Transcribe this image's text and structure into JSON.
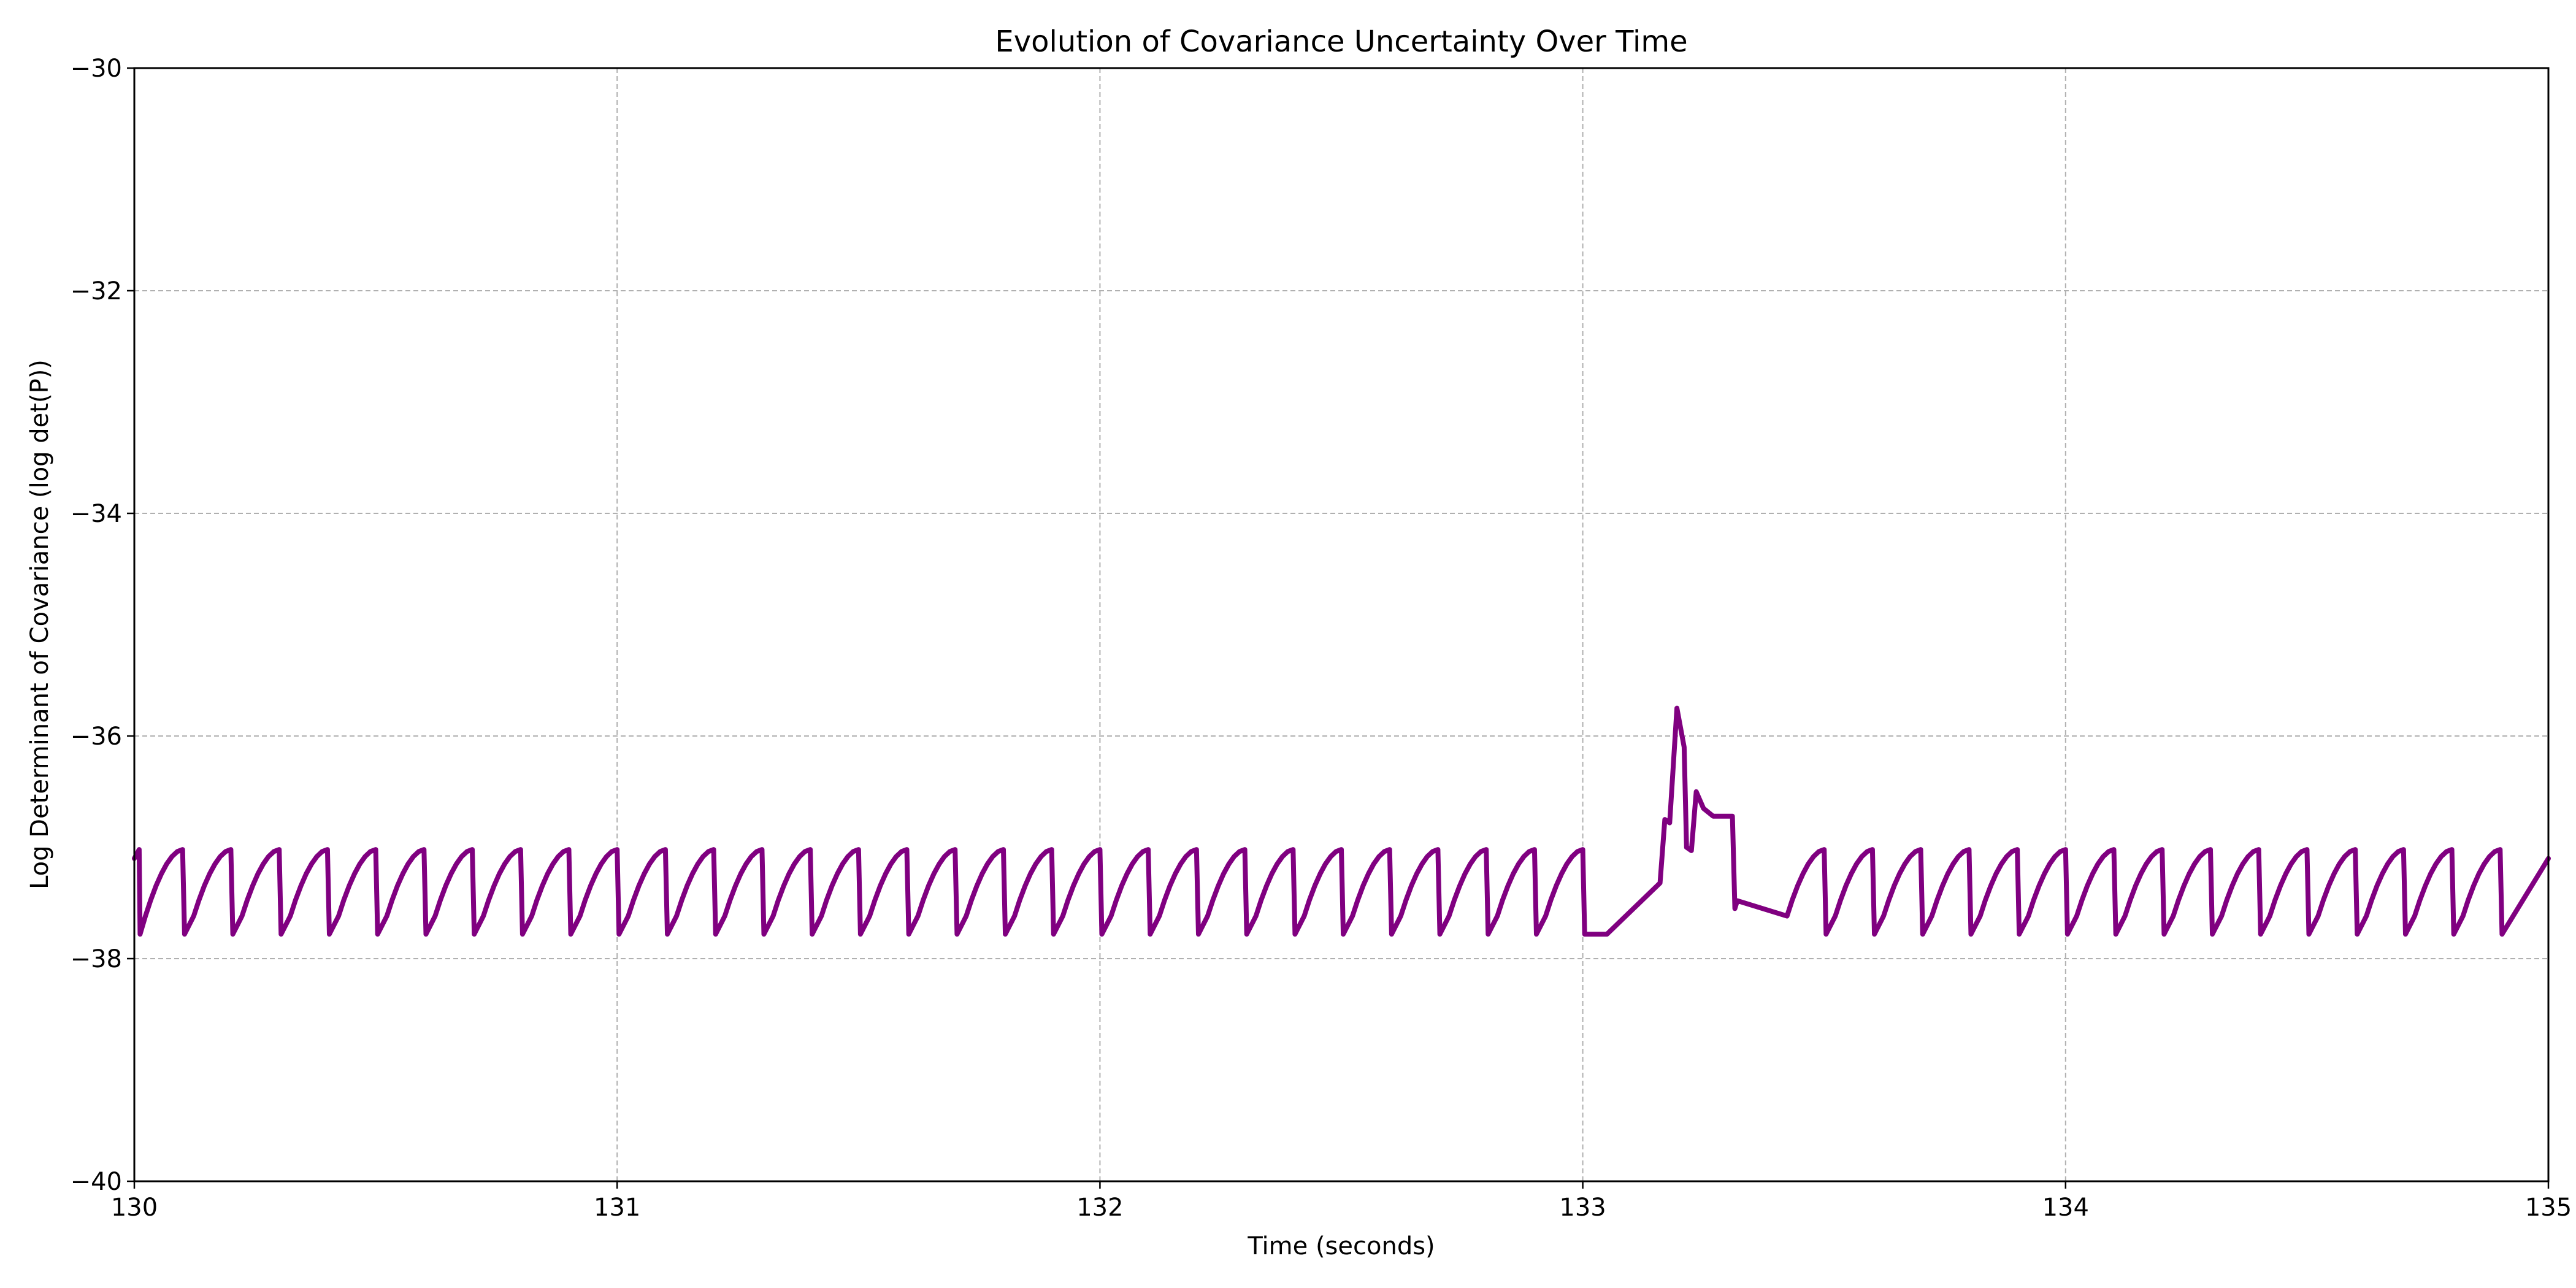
{
  "chart_data": {
    "type": "line",
    "title": "Evolution of Covariance Uncertainty Over Time",
    "xlabel": "Time (seconds)",
    "ylabel": "Log Determinant of Covariance (log det(P))",
    "xlim": [
      130,
      135
    ],
    "ylim": [
      -40,
      -30
    ],
    "x_ticks": [
      130,
      131,
      132,
      133,
      134,
      135
    ],
    "x_tick_labels": [
      "130",
      "131",
      "132",
      "133",
      "134",
      "135"
    ],
    "y_ticks": [
      -40,
      -38,
      -36,
      -34,
      -32,
      -30
    ],
    "y_tick_labels": [
      "−40",
      "−38",
      "−36",
      "−34",
      "−32",
      "−30"
    ],
    "grid": true,
    "line_color": "#800080",
    "sawtooth": {
      "start": 130.0,
      "end": 135.0,
      "period": 0.1,
      "low": -37.78,
      "high": -37.02
    },
    "anomaly": {
      "start": 133.05,
      "end": 133.32,
      "points": [
        [
          133.05,
          -37.78
        ],
        [
          133.16,
          -37.32
        ],
        [
          133.17,
          -36.75
        ],
        [
          133.18,
          -36.78
        ],
        [
          133.195,
          -35.75
        ],
        [
          133.21,
          -36.1
        ],
        [
          133.215,
          -37.0
        ],
        [
          133.225,
          -37.03
        ],
        [
          133.235,
          -36.5
        ],
        [
          133.25,
          -36.65
        ],
        [
          133.27,
          -36.72
        ],
        [
          133.3,
          -36.72
        ],
        [
          133.31,
          -36.72
        ],
        [
          133.315,
          -37.55
        ],
        [
          133.32,
          -37.48
        ]
      ]
    }
  }
}
